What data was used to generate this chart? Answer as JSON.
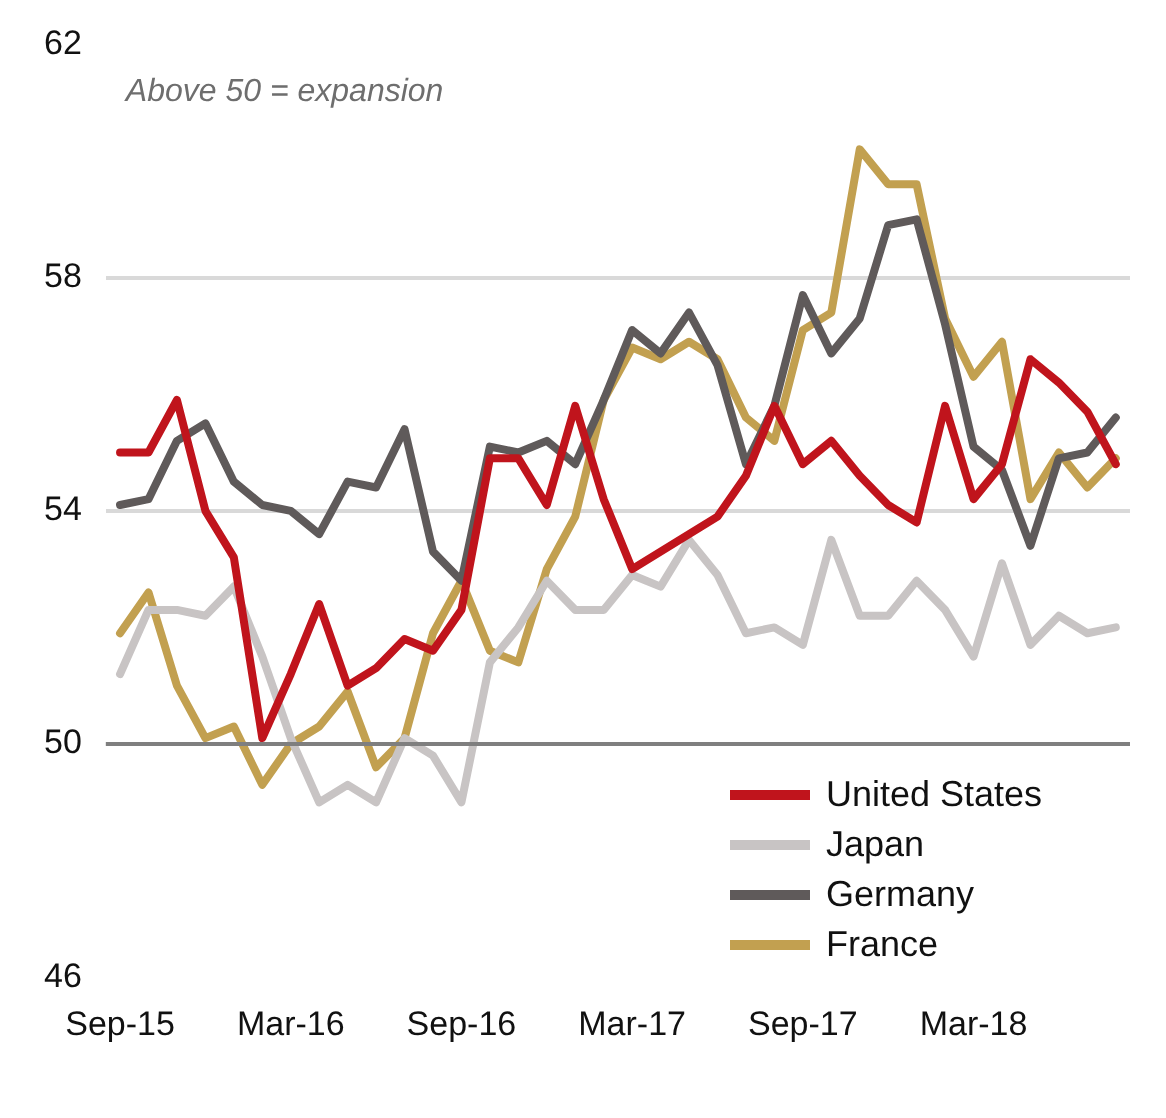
{
  "chart_data": {
    "type": "line",
    "annotations": [
      "Above 50 = expansion"
    ],
    "categories": [
      "Sep-15",
      null,
      null,
      null,
      null,
      null,
      "Mar-16",
      null,
      null,
      null,
      null,
      null,
      "Sep-16",
      null,
      null,
      null,
      null,
      null,
      "Mar-17",
      null,
      null,
      null,
      null,
      null,
      "Sep-17",
      null,
      null,
      null,
      null,
      null,
      "Mar-18",
      null,
      null,
      null,
      null,
      null
    ],
    "series": [
      {
        "name": "United States",
        "color": "#c0141c",
        "values": [
          55.0,
          55.0,
          55.9,
          54.0,
          53.2,
          50.1,
          51.2,
          52.4,
          51.0,
          51.3,
          51.8,
          51.6,
          52.3,
          54.9,
          54.9,
          54.1,
          55.8,
          54.2,
          53.0,
          53.3,
          53.6,
          53.9,
          54.6,
          55.8,
          54.8,
          55.2,
          54.6,
          54.1,
          53.8,
          55.8,
          54.2,
          54.8,
          56.6,
          56.2,
          55.7,
          54.8
        ]
      },
      {
        "name": "Japan",
        "color": "#c8c4c4",
        "values": [
          51.2,
          52.3,
          52.3,
          52.2,
          52.7,
          51.5,
          50.1,
          49.0,
          49.3,
          49.0,
          50.1,
          49.8,
          49.0,
          51.4,
          52.0,
          52.8,
          52.3,
          52.3,
          52.9,
          52.7,
          53.5,
          52.9,
          51.9,
          52.0,
          51.7,
          53.5,
          52.2,
          52.2,
          52.8,
          52.3,
          51.5,
          53.1,
          51.7,
          52.2,
          51.9,
          52.0
        ]
      },
      {
        "name": "Germany",
        "color": "#5f5a5a",
        "values": [
          54.1,
          54.2,
          55.2,
          55.5,
          54.5,
          54.1,
          54.0,
          53.6,
          54.5,
          54.4,
          55.4,
          53.3,
          52.8,
          55.1,
          55.0,
          55.2,
          54.8,
          55.9,
          57.1,
          56.7,
          57.4,
          56.5,
          54.8,
          55.8,
          57.7,
          56.7,
          57.3,
          58.9,
          59.0,
          57.2,
          55.1,
          54.7,
          53.4,
          54.9,
          55.0,
          55.6
        ]
      },
      {
        "name": "France",
        "color": "#c2a050",
        "values": [
          51.9,
          52.6,
          51.0,
          50.1,
          50.3,
          49.3,
          50.0,
          50.3,
          50.9,
          49.6,
          50.1,
          51.9,
          52.8,
          51.6,
          51.4,
          53.0,
          53.9,
          55.9,
          56.8,
          56.6,
          56.9,
          56.6,
          55.6,
          55.2,
          57.1,
          57.4,
          60.2,
          59.6,
          59.6,
          57.3,
          56.3,
          56.9,
          54.2,
          55.0,
          54.4,
          54.9
        ]
      }
    ],
    "ylim": [
      46,
      62
    ],
    "yticks": [
      46,
      50,
      54,
      58,
      62
    ],
    "grid": "y",
    "legend": "bottom right",
    "marker": "none",
    "line_style": "solid",
    "ref_lines": [
      {
        "axis": "y",
        "value": 50,
        "color": "#7f7f7f"
      }
    ]
  }
}
